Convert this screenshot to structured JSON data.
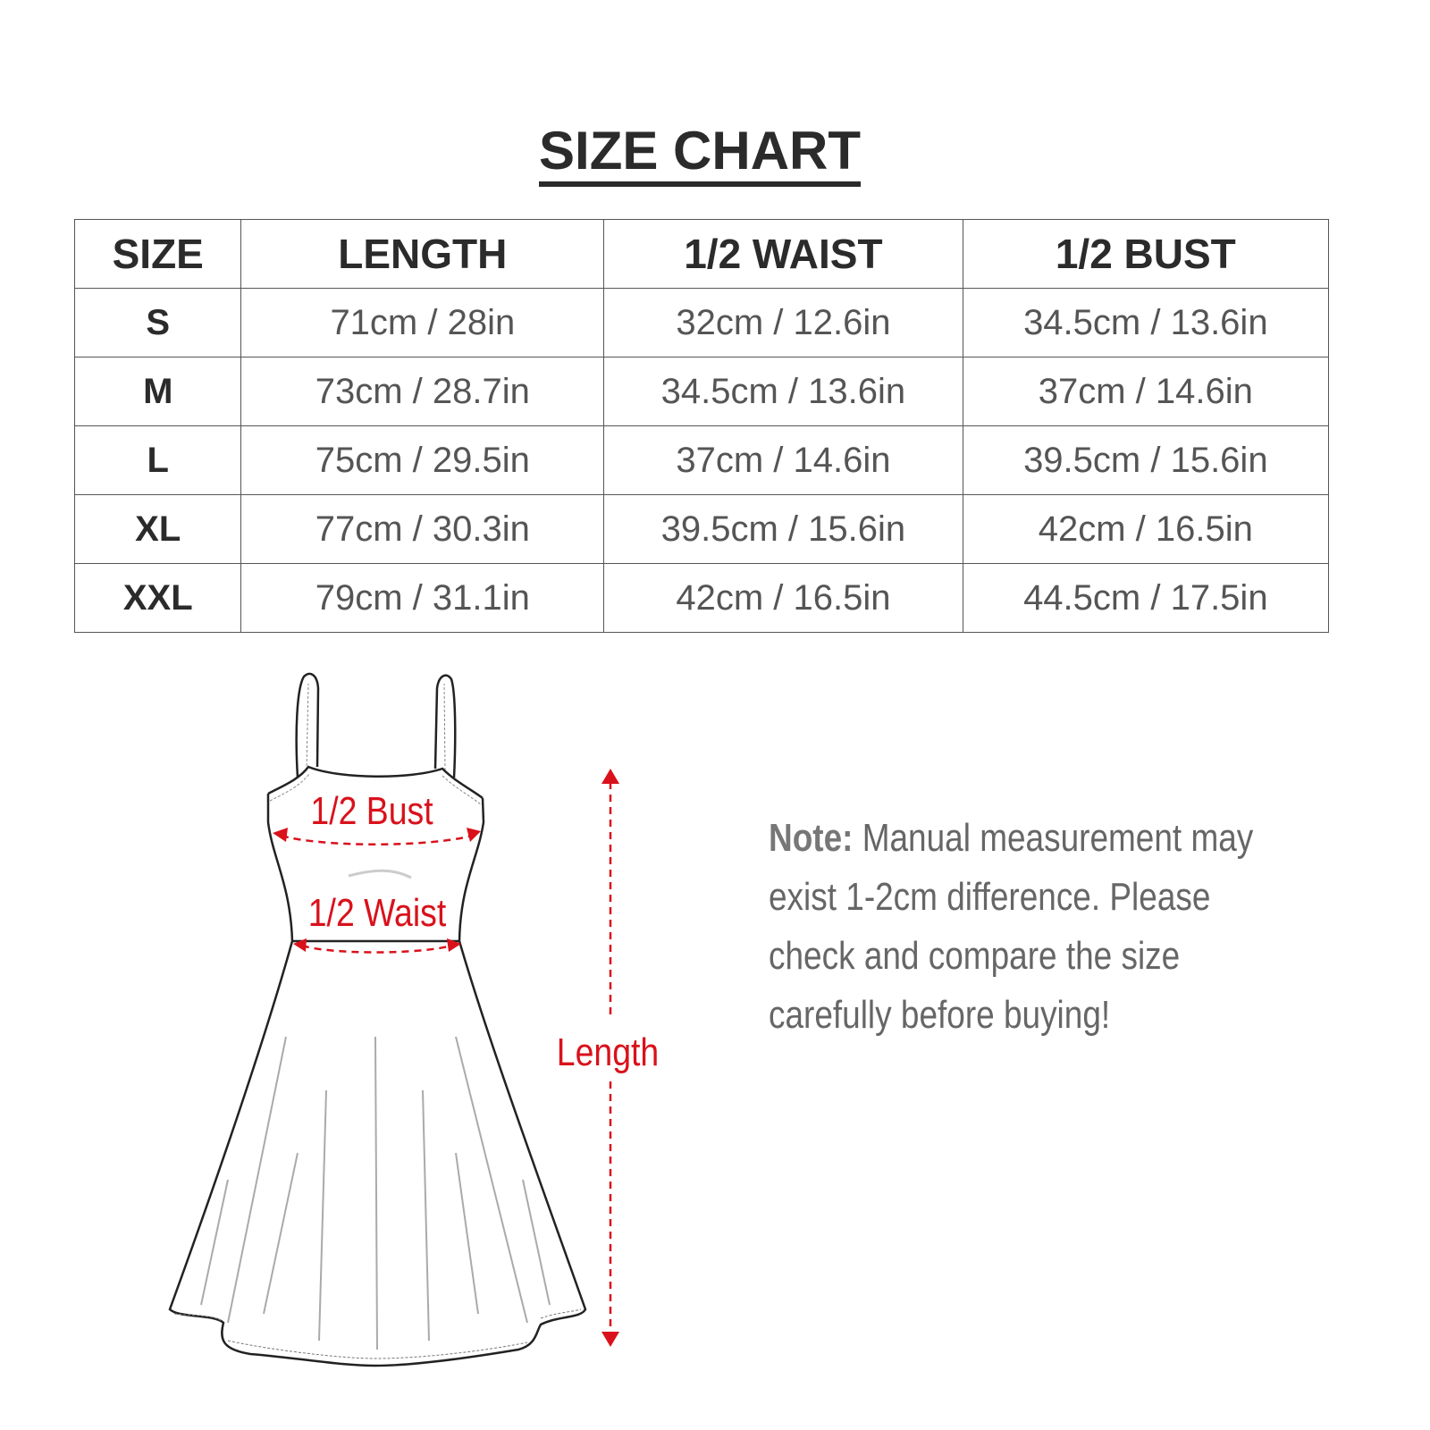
{
  "title": "SIZE CHART",
  "table": {
    "headers": [
      "SIZE",
      "LENGTH",
      "1/2 WAIST",
      "1/2 BUST"
    ],
    "rows": [
      [
        "S",
        "71cm / 28in",
        "32cm / 12.6in",
        "34.5cm / 13.6in"
      ],
      [
        "M",
        "73cm / 28.7in",
        "34.5cm / 13.6in",
        "37cm / 14.6in"
      ],
      [
        "L",
        "75cm / 29.5in",
        "37cm / 14.6in",
        "39.5cm / 15.6in"
      ],
      [
        "XL",
        "77cm / 30.3in",
        "39.5cm / 15.6in",
        "42cm / 16.5in"
      ],
      [
        "XXL",
        "79cm / 31.1in",
        "42cm / 16.5in",
        "44.5cm / 17.5in"
      ]
    ]
  },
  "diagram": {
    "bust_label": "1/2 Bust",
    "waist_label": "1/2 Waist",
    "length_label": "Length",
    "accent_color": "#d9111b"
  },
  "note": {
    "label": "Note:",
    "text": " Manual measurement may exist 1-2cm difference. Please check and compare the size carefully before buying!"
  }
}
